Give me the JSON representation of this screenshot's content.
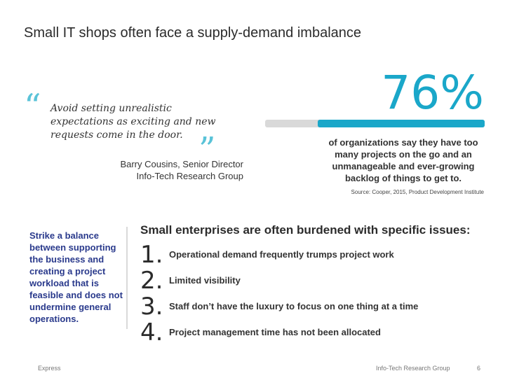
{
  "title": "Small IT shops often face a supply-demand imbalance",
  "quote": {
    "open_mark": "“",
    "close_mark": "”",
    "text": "Avoid setting unrealistic expectations as exciting and new requests come in the door.",
    "author_line1": "Barry Cousins, Senior Director",
    "author_line2": "Info-Tech Research Group"
  },
  "stat": {
    "value": "76%",
    "fraction": 0.76,
    "description": "of organizations say they have too many projects on the go and an unmanageable and ever-growing backlog of things to get to.",
    "source": "Source: Cooper, 2015, Product Development Institute"
  },
  "sidebar_note": "Strike a balance between supporting the business and creating a project workload that is feasible and does not undermine general operations.",
  "issues": {
    "title": "Small enterprises are often burdened with specific issues:",
    "items": [
      {
        "num": "1.",
        "text": "Operational demand frequently trumps project work"
      },
      {
        "num": "2.",
        "text": "Limited visibility"
      },
      {
        "num": "3.",
        "text": "Staff don’t have the luxury to focus on one thing at a time"
      },
      {
        "num": "4.",
        "text": "Project management time has not been allocated"
      }
    ]
  },
  "footer": {
    "left": "Express",
    "right": "Info-Tech Research Group",
    "page": "6"
  },
  "colors": {
    "accent": "#1aa7c9",
    "note": "#2a3a8c",
    "bar_track": "#d9d9d9"
  }
}
